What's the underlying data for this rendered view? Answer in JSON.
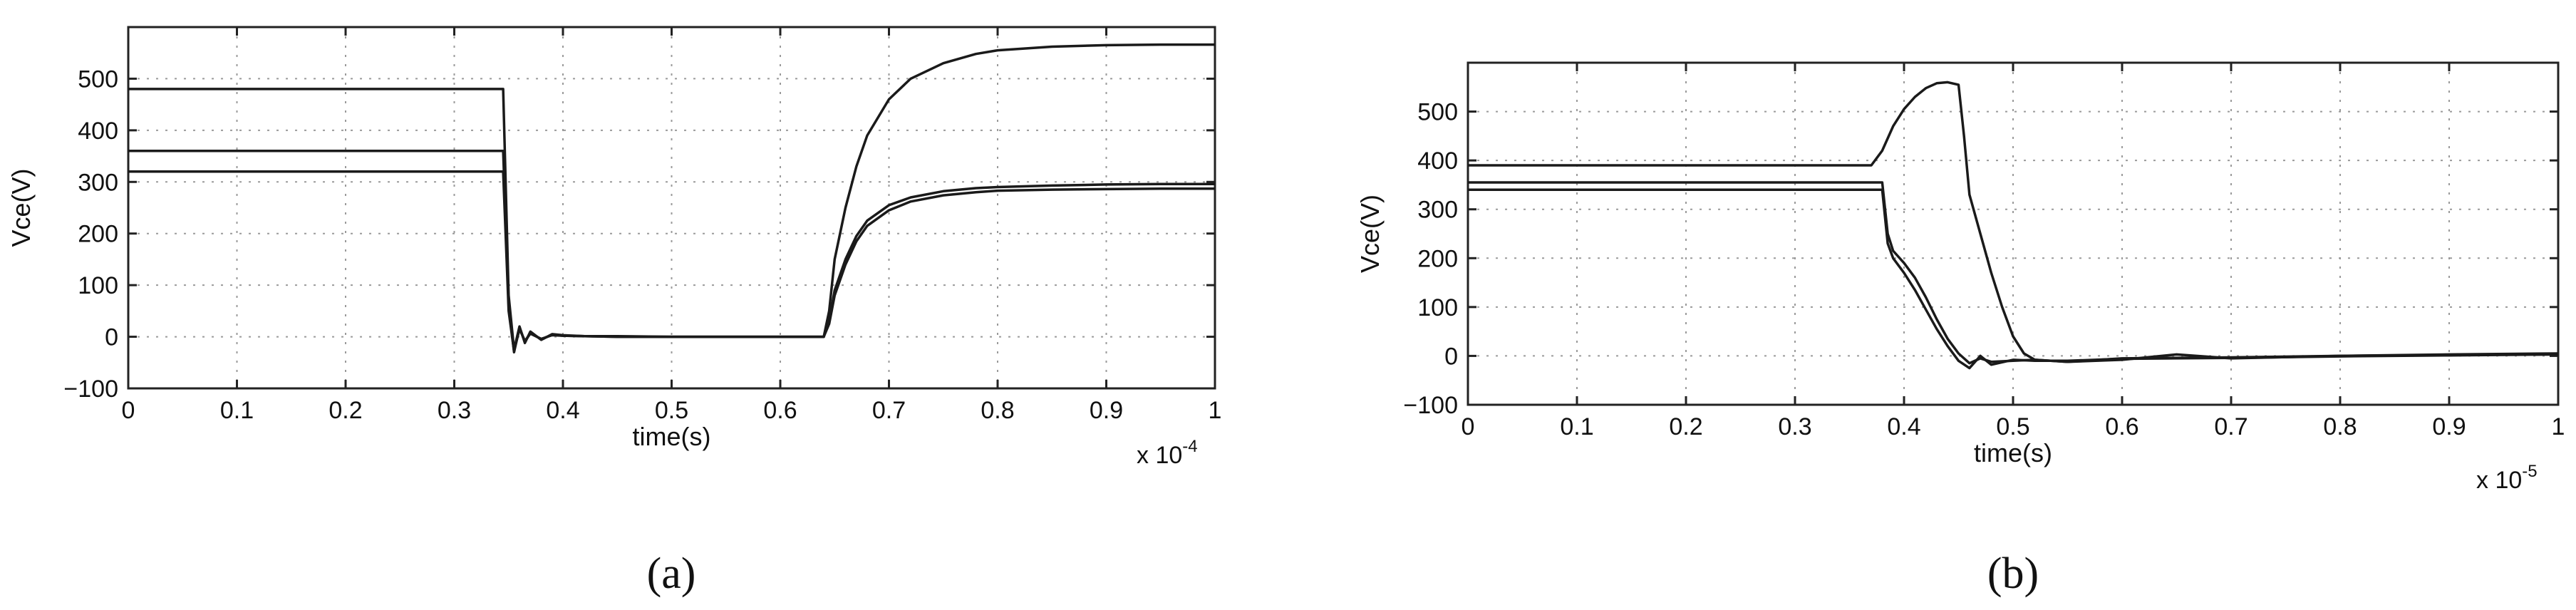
{
  "chart_data": [
    {
      "type": "line",
      "caption": "(a)",
      "xlabel": "time(s)",
      "ylabel": "Vce(V)",
      "x_multiplier_prefix": "x 10",
      "x_multiplier_exp": "-4",
      "xlim": [
        0,
        1
      ],
      "ylim": [
        -100,
        600
      ],
      "xticks": [
        0,
        0.1,
        0.2,
        0.3,
        0.4,
        0.5,
        0.6,
        0.7,
        0.8,
        0.9,
        1
      ],
      "xtick_labels": [
        "0",
        "0.1",
        "0.2",
        "0.3",
        "0.4",
        "0.5",
        "0.6",
        "0.7",
        "0.8",
        "0.9",
        "1"
      ],
      "yticks": [
        -100,
        0,
        100,
        200,
        300,
        400,
        500
      ],
      "ytick_labels": [
        "−100",
        "0",
        "100",
        "200",
        "300",
        "400",
        "500"
      ],
      "grid": true,
      "series": [
        {
          "x": [
            0,
            0.345,
            0.35,
            0.355,
            0.36,
            0.365,
            0.37,
            0.38,
            0.39,
            0.4,
            0.42,
            0.45,
            0.5,
            0.55,
            0.6,
            0.64,
            0.645,
            0.65,
            0.66,
            0.67,
            0.68,
            0.7,
            0.72,
            0.75,
            0.78,
            0.8,
            0.85,
            0.9,
            0.95,
            1.0
          ],
          "y": [
            480,
            480,
            80,
            -25,
            20,
            -12,
            10,
            -6,
            5,
            3,
            1,
            1,
            0,
            0,
            0,
            0,
            50,
            150,
            250,
            330,
            390,
            460,
            500,
            530,
            548,
            555,
            562,
            565,
            566,
            566
          ]
        },
        {
          "x": [
            0,
            0.345,
            0.35,
            0.355,
            0.36,
            0.365,
            0.37,
            0.38,
            0.39,
            0.4,
            0.42,
            0.45,
            0.5,
            0.55,
            0.6,
            0.64,
            0.645,
            0.65,
            0.66,
            0.67,
            0.68,
            0.7,
            0.72,
            0.75,
            0.78,
            0.8,
            0.85,
            0.9,
            0.95,
            1.0
          ],
          "y": [
            360,
            360,
            60,
            -30,
            18,
            -10,
            8,
            -5,
            4,
            2,
            1,
            0,
            0,
            0,
            0,
            0,
            30,
            90,
            150,
            195,
            225,
            255,
            270,
            282,
            288,
            290,
            293,
            295,
            296,
            296
          ]
        },
        {
          "x": [
            0,
            0.345,
            0.35,
            0.355,
            0.36,
            0.365,
            0.37,
            0.38,
            0.39,
            0.4,
            0.42,
            0.45,
            0.5,
            0.55,
            0.6,
            0.64,
            0.645,
            0.65,
            0.66,
            0.67,
            0.68,
            0.7,
            0.72,
            0.75,
            0.78,
            0.8,
            0.85,
            0.9,
            0.95,
            1.0
          ],
          "y": [
            320,
            320,
            50,
            -28,
            15,
            -8,
            6,
            -4,
            3,
            2,
            1,
            0,
            0,
            0,
            0,
            0,
            25,
            80,
            140,
            185,
            215,
            245,
            262,
            274,
            280,
            283,
            285,
            286,
            287,
            287
          ]
        }
      ]
    },
    {
      "type": "line",
      "caption": "(b)",
      "xlabel": "time(s)",
      "ylabel": "Vce(V)",
      "x_multiplier_prefix": "x 10",
      "x_multiplier_exp": "-5",
      "xlim": [
        0,
        1
      ],
      "ylim": [
        -100,
        600
      ],
      "xticks": [
        0,
        0.1,
        0.2,
        0.3,
        0.4,
        0.5,
        0.6,
        0.7,
        0.8,
        0.9,
        1
      ],
      "xtick_labels": [
        "0",
        "0.1",
        "0.2",
        "0.3",
        "0.4",
        "0.5",
        "0.6",
        "0.7",
        "0.8",
        "0.9",
        "1"
      ],
      "yticks": [
        -100,
        0,
        100,
        200,
        300,
        400,
        500
      ],
      "ytick_labels": [
        "−100",
        "0",
        "100",
        "200",
        "300",
        "400",
        "500"
      ],
      "grid": true,
      "series": [
        {
          "x": [
            0,
            0.37,
            0.38,
            0.39,
            0.4,
            0.41,
            0.42,
            0.43,
            0.44,
            0.45,
            0.455,
            0.46,
            0.47,
            0.48,
            0.49,
            0.5,
            0.51,
            0.52,
            0.55,
            0.6,
            0.65,
            0.7,
            0.8,
            0.9,
            1.0
          ],
          "y": [
            390,
            390,
            420,
            470,
            505,
            530,
            548,
            558,
            560,
            555,
            450,
            330,
            250,
            170,
            100,
            40,
            5,
            -8,
            -12,
            -8,
            3,
            -5,
            0,
            3,
            5
          ]
        },
        {
          "x": [
            0,
            0.38,
            0.385,
            0.39,
            0.4,
            0.41,
            0.42,
            0.43,
            0.44,
            0.45,
            0.46,
            0.47,
            0.48,
            0.5,
            0.52,
            0.55,
            0.6,
            0.7,
            0.8,
            0.9,
            1.0
          ],
          "y": [
            355,
            355,
            250,
            215,
            190,
            160,
            120,
            75,
            35,
            5,
            -15,
            -5,
            -12,
            -10,
            -8,
            -12,
            -5,
            -3,
            0,
            2,
            4
          ]
        },
        {
          "x": [
            0,
            0.38,
            0.385,
            0.39,
            0.4,
            0.41,
            0.42,
            0.43,
            0.44,
            0.45,
            0.46,
            0.47,
            0.48,
            0.5,
            0.52,
            0.55,
            0.6,
            0.7,
            0.8,
            0.9,
            1.0
          ],
          "y": [
            340,
            340,
            230,
            200,
            170,
            135,
            95,
            55,
            20,
            -10,
            -25,
            0,
            -18,
            -8,
            -10,
            -10,
            -6,
            -4,
            -1,
            1,
            3
          ]
        }
      ]
    }
  ]
}
